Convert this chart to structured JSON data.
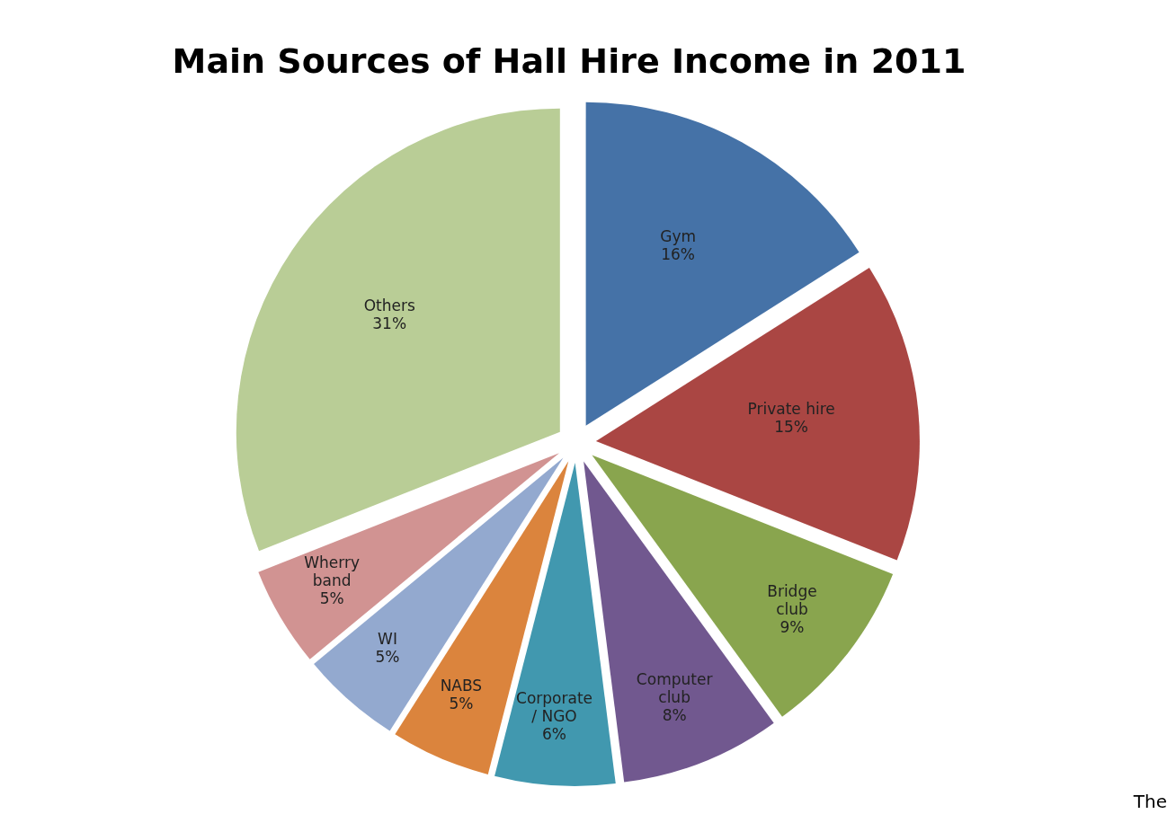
{
  "chart_data": {
    "type": "pie",
    "title": "Main Sources of Hall Hire Income in 2011",
    "categories": [
      "Gym",
      "Private hire",
      "Bridge club",
      "Computer club",
      "Corporate  / NGO",
      "NABS",
      "WI",
      "Wherry band",
      "Others"
    ],
    "values": [
      16,
      15,
      9,
      8,
      6,
      5,
      5,
      5,
      31
    ],
    "value_labels": [
      "16%",
      "15%",
      "9%",
      "8%",
      "6%",
      "5%",
      "5%",
      "5%",
      "31%"
    ],
    "colors": [
      "#4572a7",
      "#aa4643",
      "#89a54e",
      "#71588f",
      "#4198af",
      "#db843d",
      "#93a9cf",
      "#d19392",
      "#b9cd96"
    ],
    "legend": false,
    "annotations": [
      "The"
    ]
  }
}
